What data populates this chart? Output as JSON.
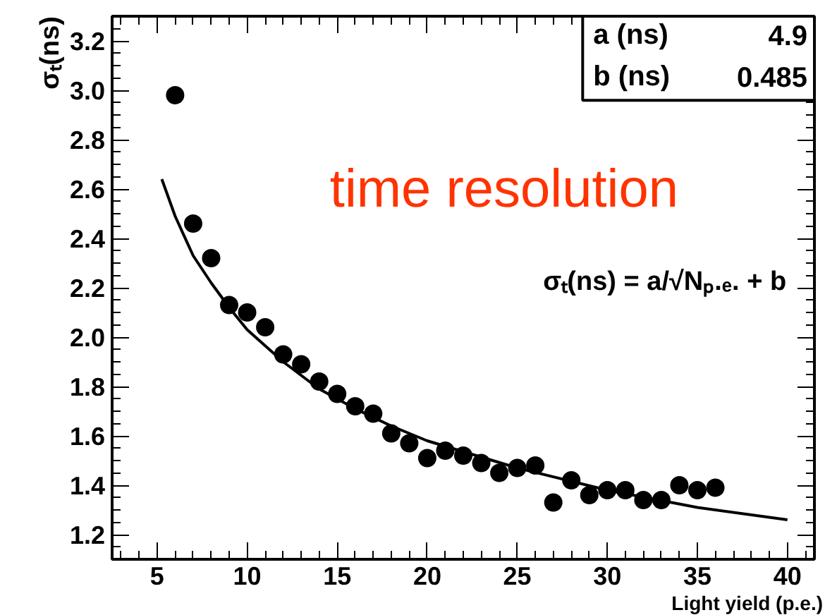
{
  "chart_data": {
    "type": "scatter",
    "xlabel": "Light yield (p.e.)",
    "ylabel": "σₜ(ns)",
    "xlim": [
      2.5,
      41.5
    ],
    "ylim": [
      1.1,
      3.3
    ],
    "xticks": [
      5,
      10,
      15,
      20,
      25,
      30,
      35,
      40
    ],
    "yticks": [
      1.2,
      1.4,
      1.6,
      1.8,
      {
        "value": 2,
        "label": "2.0"
      },
      2.2,
      2.4,
      2.6,
      2.8,
      {
        "value": 3,
        "label": "3.0"
      },
      3.2
    ],
    "grid": false,
    "series": [
      {
        "marker": "circle",
        "color": "#000000",
        "x": [
          6,
          7,
          8,
          9,
          10,
          11,
          12,
          13,
          14,
          15,
          16,
          17,
          18,
          19,
          20,
          21,
          22,
          23,
          24,
          25,
          26,
          27,
          28,
          29,
          30,
          31,
          32,
          33,
          34,
          35,
          36
        ],
        "values": [
          2.98,
          2.46,
          2.32,
          2.13,
          2.1,
          2.04,
          1.93,
          1.89,
          1.82,
          1.77,
          1.72,
          1.69,
          1.61,
          1.57,
          1.51,
          1.54,
          1.52,
          1.49,
          1.45,
          1.47,
          1.48,
          1.33,
          1.42,
          1.36,
          1.38,
          1.38,
          1.34,
          1.34,
          1.4,
          1.38,
          1.39
        ]
      },
      {
        "type": "line",
        "color": "#000000",
        "x": [
          5.26,
          6,
          7,
          8,
          9,
          10,
          12,
          14,
          16,
          18,
          20,
          25,
          30,
          35,
          40
        ],
        "values": [
          2.64,
          2.49,
          2.33,
          2.22,
          2.12,
          2.03,
          1.9,
          1.79,
          1.71,
          1.64,
          1.58,
          1.47,
          1.38,
          1.31,
          1.26
        ]
      }
    ],
    "annotations": [
      "a (ns)",
      "4.9",
      "b (ns)",
      "0.485",
      "time resolution",
      "σₜ(ns) = a/√Nₚ.ₑ. + b"
    ]
  }
}
